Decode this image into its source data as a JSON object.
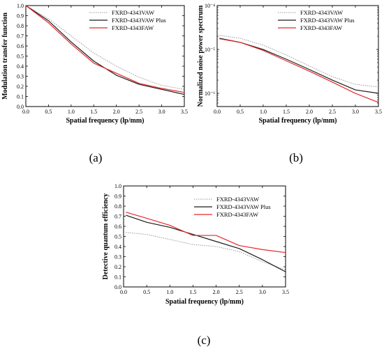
{
  "colors": {
    "FXRD-4343VAW": "#9a9a9a",
    "FXRD-4343VAW Plus": "#1a1a1a",
    "FXRD-4343FAW": "#e8262b"
  },
  "chart_data": [
    {
      "type": "line",
      "panel_label": "(a)",
      "xlabel": "Spatial frequency (lp/mm)",
      "ylabel": "Modulation transfer function",
      "xlim": [
        0.0,
        3.5
      ],
      "ylim": [
        0.0,
        1.0
      ],
      "xticks": [
        "0.0",
        "0.5",
        "1.0",
        "1.5",
        "2.0",
        "2.5",
        "3.0",
        "3.5"
      ],
      "yticks": [
        "0.0",
        "0.1",
        "0.2",
        "0.3",
        "0.4",
        "0.5",
        "0.6",
        "0.7",
        "0.8",
        "0.9",
        "1.0"
      ],
      "legend_position": "top-right",
      "series": [
        {
          "name": "FXRD-4343VAW",
          "style": "dotted",
          "x": [
            0,
            0.5,
            1.0,
            1.5,
            2.0,
            2.5,
            3.0,
            3.5
          ],
          "y": [
            1.0,
            0.87,
            0.7,
            0.53,
            0.4,
            0.29,
            0.21,
            0.17
          ]
        },
        {
          "name": "FXRD-4343VAW Plus",
          "style": "solid",
          "x": [
            0,
            0.5,
            1.0,
            1.5,
            2.0,
            2.5,
            3.0,
            3.5
          ],
          "y": [
            1.0,
            0.85,
            0.64,
            0.45,
            0.31,
            0.22,
            0.17,
            0.12
          ]
        },
        {
          "name": "FXRD-4343FAW",
          "style": "solid",
          "x": [
            0,
            0.5,
            1.0,
            1.5,
            2.0,
            2.5,
            3.0,
            3.5
          ],
          "y": [
            1.0,
            0.83,
            0.62,
            0.43,
            0.33,
            0.23,
            0.18,
            0.14
          ]
        }
      ]
    },
    {
      "type": "line",
      "panel_label": "(b)",
      "xlabel": "Spatial frequency (lp/mm)",
      "ylabel": "Normalized noise power spectrum",
      "xlim": [
        0.0,
        3.5
      ],
      "ylim": [
        5e-07,
        0.0001
      ],
      "yscale": "log",
      "xticks": [
        "0.0",
        "0.5",
        "1.0",
        "1.5",
        "2.0",
        "2.5",
        "3.0",
        "3.5"
      ],
      "yticks": [
        "10⁻⁴",
        "10⁻⁵",
        "10⁻⁶"
      ],
      "legend_position": "top-right",
      "series": [
        {
          "name": "FXRD-4343VAW",
          "style": "dotted",
          "x": [
            0.05,
            0.5,
            1.0,
            1.5,
            2.0,
            2.5,
            3.0,
            3.5
          ],
          "y": [
            2.1e-05,
            1.8e-05,
            1.25e-05,
            7.5e-06,
            4.2e-06,
            2.4e-06,
            1.6e-06,
            1.4e-06
          ]
        },
        {
          "name": "FXRD-4343VAW Plus",
          "style": "solid",
          "x": [
            0.05,
            0.5,
            1.0,
            1.5,
            2.0,
            2.5,
            3.0,
            3.5
          ],
          "y": [
            1.8e-05,
            1.45e-05,
            1e-05,
            6e-06,
            3.5e-06,
            2e-06,
            1.2e-06,
            1e-06
          ]
        },
        {
          "name": "FXRD-4343FAW",
          "style": "solid",
          "x": [
            0.05,
            0.5,
            1.0,
            1.5,
            2.0,
            2.5,
            3.0,
            3.5
          ],
          "y": [
            1.75e-05,
            1.45e-05,
            9.5e-06,
            5.5e-06,
            3.2e-06,
            1.8e-06,
            1e-06,
            6.2e-07
          ]
        }
      ]
    },
    {
      "type": "line",
      "panel_label": "(c)",
      "xlabel": "Spatial frequency (lp/mm)",
      "ylabel": "Detective quantum efficiency",
      "xlim": [
        0.0,
        3.5
      ],
      "ylim": [
        0.0,
        1.0
      ],
      "xticks": [
        "0.0",
        "0.5",
        "1.0",
        "1.5",
        "2.0",
        "2.5",
        "3.0",
        "3.5"
      ],
      "yticks": [
        "0.0",
        "0.1",
        "0.2",
        "0.3",
        "0.4",
        "0.5",
        "0.6",
        "0.7",
        "0.8",
        "0.9",
        "1.0"
      ],
      "legend_position": "top-right",
      "series": [
        {
          "name": "FXRD-4343VAW",
          "style": "dotted",
          "x": [
            0.05,
            0.5,
            1.0,
            1.5,
            2.0,
            2.5,
            3.0,
            3.5
          ],
          "y": [
            0.54,
            0.52,
            0.47,
            0.42,
            0.4,
            0.35,
            0.25,
            0.17
          ]
        },
        {
          "name": "FXRD-4343VAW Plus",
          "style": "solid",
          "x": [
            0.05,
            0.5,
            1.0,
            1.5,
            2.0,
            2.5,
            3.0,
            3.5
          ],
          "y": [
            0.71,
            0.64,
            0.59,
            0.52,
            0.45,
            0.38,
            0.27,
            0.15
          ]
        },
        {
          "name": "FXRD-4343FAW",
          "style": "solid",
          "x": [
            0.05,
            0.5,
            1.0,
            1.5,
            2.0,
            2.5,
            3.0,
            3.5
          ],
          "y": [
            0.74,
            0.68,
            0.61,
            0.51,
            0.51,
            0.41,
            0.37,
            0.34
          ]
        }
      ]
    }
  ]
}
